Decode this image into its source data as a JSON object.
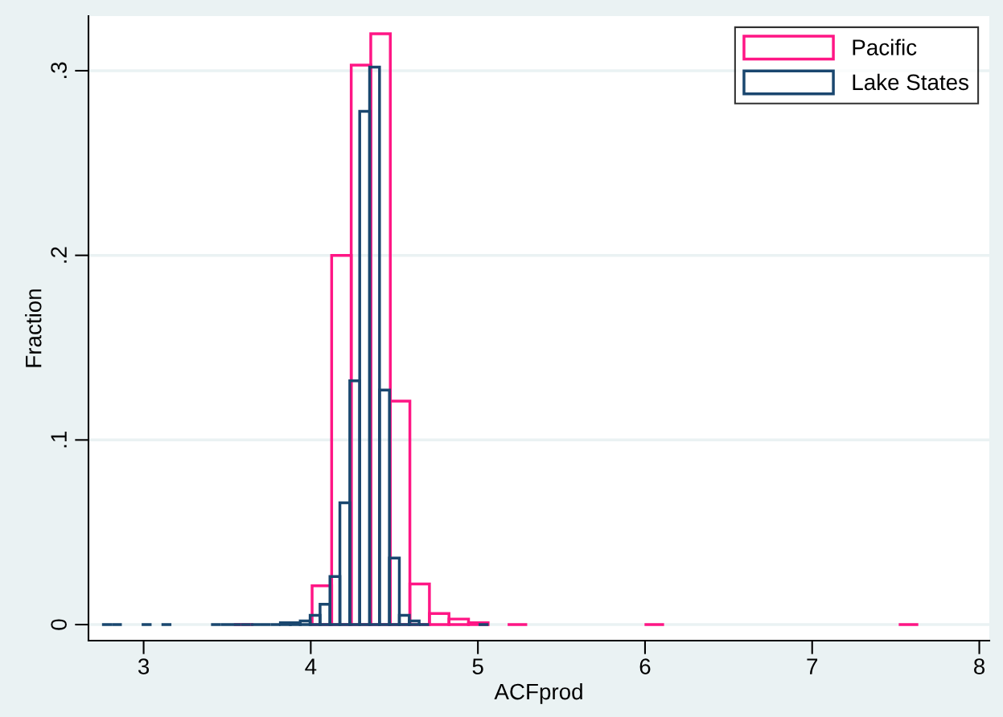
{
  "chart_data": {
    "type": "histogram",
    "xlabel": "ACFprod",
    "ylabel": "Fraction",
    "xlim": [
      2.67,
      8.06
    ],
    "xticks": [
      3,
      4,
      5,
      6,
      7,
      8
    ],
    "ylim": [
      -0.0087,
      0.3296
    ],
    "yticks": [
      {
        "value": 0,
        "label": "0"
      },
      {
        "value": 0.1,
        "label": ".1"
      },
      {
        "value": 0.2,
        "label": ".2"
      },
      {
        "value": 0.3,
        "label": ".3"
      }
    ],
    "grid": "y",
    "legend": "top right",
    "bins": [
      2.751,
      2.8103,
      2.8696,
      2.9289,
      2.9882,
      3.0475,
      3.1068,
      3.1661,
      3.2254,
      3.2847,
      3.344,
      3.4033,
      3.4626,
      3.5219,
      3.5812,
      3.6405,
      3.6998,
      3.7591,
      3.8184,
      3.8777,
      3.937,
      3.9963,
      4.0556,
      4.1149,
      4.1742,
      4.2335,
      4.2928,
      4.3521,
      4.4114,
      4.4707,
      4.53,
      4.5893,
      4.6486,
      4.7079,
      4.7672,
      4.8265,
      4.8858,
      4.9451,
      5.0044,
      5.0637
    ],
    "series": [
      {
        "name": "Pacific",
        "color": "#ff1685",
        "bins": [
          3.54,
          3.657,
          3.774,
          3.891,
          4.008,
          4.125,
          4.242,
          4.359,
          4.476,
          4.593,
          4.71,
          4.827,
          4.944,
          5.061,
          5.178,
          5.295,
          5.412,
          5.529,
          5.646,
          5.763,
          5.88,
          5.997,
          6.114,
          6.231,
          6.348,
          6.465,
          6.582,
          6.699,
          6.816,
          6.933,
          7.05,
          7.167,
          7.284,
          7.401,
          7.518,
          7.635
        ],
        "values": [
          0,
          null,
          null,
          null,
          0.021,
          0.2,
          0.303,
          0.32,
          0.121,
          0.022,
          0.006,
          0.003,
          0.001,
          null,
          0,
          null,
          null,
          null,
          null,
          null,
          null,
          0,
          null,
          null,
          null,
          null,
          null,
          null,
          null,
          null,
          null,
          null,
          null,
          null,
          0
        ]
      },
      {
        "name": "Lake States",
        "color": "#1a476f",
        "values": [
          0,
          0,
          null,
          null,
          0,
          null,
          0,
          null,
          null,
          null,
          null,
          0,
          0,
          0,
          0,
          0,
          0,
          0,
          0.001,
          0.001,
          0.002,
          0.005,
          0.011,
          0.026,
          0.066,
          0.132,
          0.278,
          0.302,
          0.127,
          0.036,
          0.005,
          0.002,
          0,
          null,
          null,
          null,
          null,
          null,
          0
        ]
      }
    ]
  }
}
